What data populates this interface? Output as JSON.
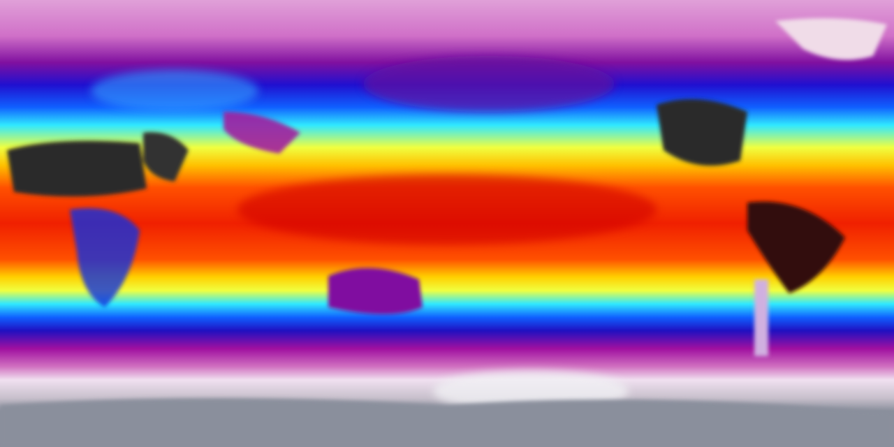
{
  "map": {
    "projection": "equirectangular",
    "colormap": {
      "coldest": "#8a8f9c",
      "very_cold": "#f0e6f0",
      "cold": "#c01aa8",
      "cool": "#1010e0",
      "mild": "#20f0ff",
      "warm": "#ffff20",
      "hot": "#ff3000",
      "hotter": "#c00000",
      "hottest": "#303030"
    }
  }
}
